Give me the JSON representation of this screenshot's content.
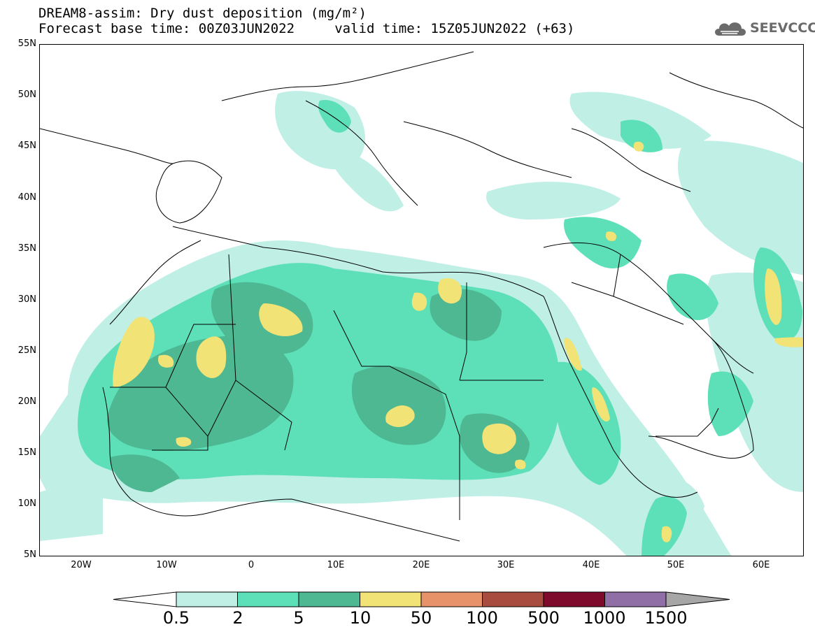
{
  "header": {
    "title_line1": "DREAM8-assim: Dry dust deposition (mg/m²)",
    "title_line2": "Forecast base time: 00Z03JUN2022     valid time: 15Z05JUN2022 (+63)",
    "logo_text": "SEEVCCC",
    "logo_icon": "cloud-icon"
  },
  "map": {
    "lat_labels": [
      "55N",
      "50N",
      "45N",
      "40N",
      "35N",
      "30N",
      "25N",
      "20N",
      "15N",
      "10N",
      "5N"
    ],
    "lon_labels": [
      "20W",
      "10W",
      "0",
      "10E",
      "20E",
      "30E",
      "40E",
      "50E",
      "60E"
    ]
  },
  "colorbar": {
    "labels": [
      "0.5",
      "2",
      "5",
      "10",
      "50",
      "100",
      "500",
      "1000",
      "1500"
    ],
    "colors": [
      "#c0efe6",
      "#5de0b8",
      "#4db892",
      "#f2e377",
      "#e8926a",
      "#a84c40",
      "#7e0b2b",
      "#8f6fa6"
    ],
    "under_color": "#ffffff",
    "over_color": "#a6a6a6"
  }
}
